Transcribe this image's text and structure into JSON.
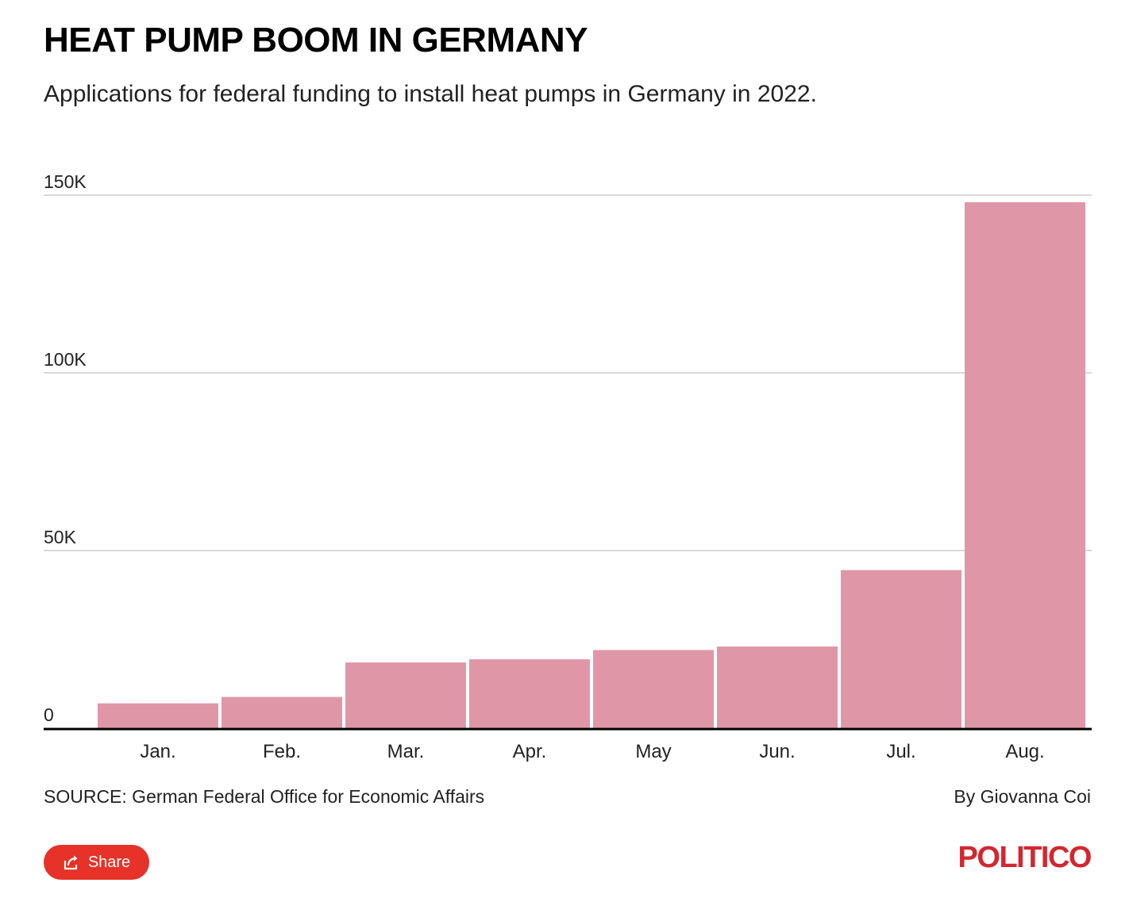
{
  "header": {
    "title": "HEAT PUMP BOOM IN GERMANY",
    "subtitle": "Applications for federal funding to install heat pumps in Germany in 2022."
  },
  "footer": {
    "source": "SOURCE: German Federal Office for Economic Affairs",
    "byline": "By Giovanna Coi",
    "share_label": "Share",
    "logo": "POLITICO"
  },
  "colors": {
    "bar": "#df97a8",
    "gridline": "#cccccc",
    "baseline": "#000000",
    "share_button": "#e63229",
    "logo": "#d3272f"
  },
  "icons": {
    "share": "share-icon"
  },
  "chart_data": {
    "type": "bar",
    "categories": [
      "Jan.",
      "Feb.",
      "Mar.",
      "Apr.",
      "May",
      "Jun.",
      "Jul.",
      "Aug."
    ],
    "values": [
      7000,
      8800,
      18500,
      19400,
      22000,
      23000,
      44500,
      148000
    ],
    "ylim": [
      0,
      150000
    ],
    "yticks": [
      0,
      50000,
      100000,
      150000
    ],
    "ytick_labels": [
      "0",
      "50K",
      "100K",
      "150K"
    ],
    "grid": true,
    "legend": "none",
    "xlabel": "",
    "ylabel": ""
  }
}
